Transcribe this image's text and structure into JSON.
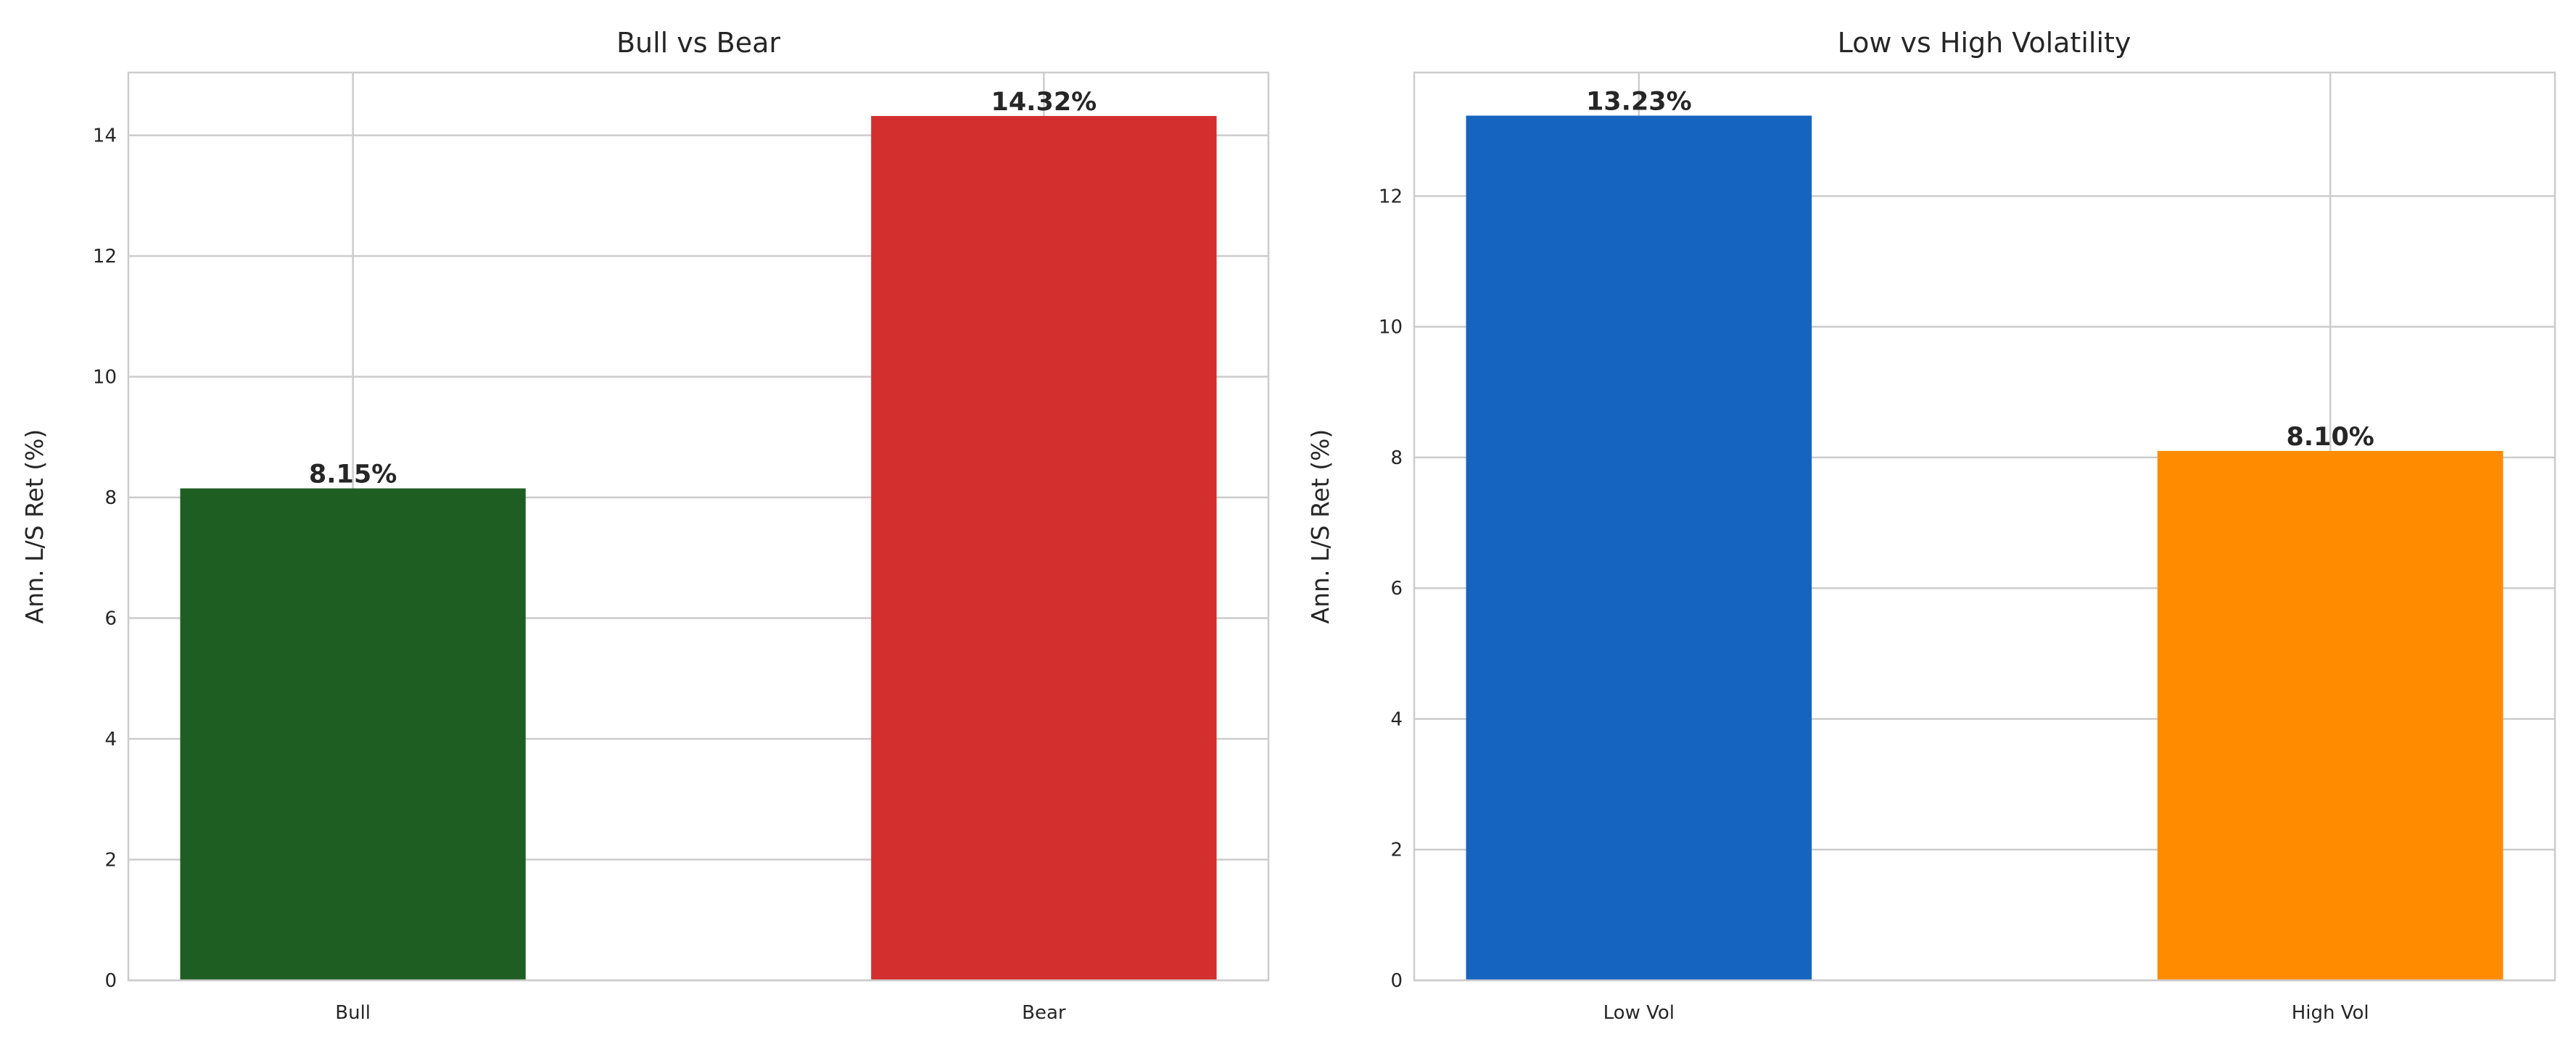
{
  "chart_data": [
    {
      "type": "bar",
      "title": "Bull vs Bear",
      "xlabel": "",
      "ylabel": "Ann. L/S Ret (%)",
      "categories": [
        "Bull",
        "Bear"
      ],
      "values": [
        8.15,
        14.32
      ],
      "value_labels": [
        "8.15%",
        "14.32%"
      ],
      "colors": [
        "#1e5e22",
        "#d32f2f"
      ],
      "ylim": [
        0,
        15.04
      ],
      "yticks": [
        0,
        2,
        4,
        6,
        8,
        10,
        12,
        14
      ],
      "grid": true
    },
    {
      "type": "bar",
      "title": "Low vs High Volatility",
      "xlabel": "",
      "ylabel": "Ann. L/S Ret (%)",
      "categories": [
        "Low Vol",
        "High Vol"
      ],
      "values": [
        13.23,
        8.1
      ],
      "value_labels": [
        "13.23%",
        "8.10%"
      ],
      "colors": [
        "#1565c0",
        "#ff8c00"
      ],
      "ylim": [
        0,
        13.89
      ],
      "yticks": [
        0,
        2,
        4,
        6,
        8,
        10,
        12
      ],
      "grid": true
    }
  ]
}
